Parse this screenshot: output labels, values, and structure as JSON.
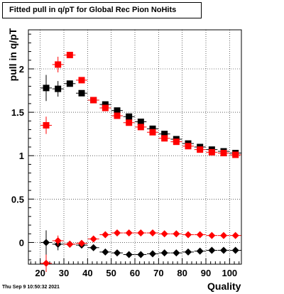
{
  "chart_data": {
    "type": "scatter",
    "title": "Fitted pull in q/pT for Global Rec Pion NoHits",
    "xlabel": "Quality",
    "ylabel": "pull in q/pT",
    "xlim": [
      15,
      105
    ],
    "ylim": [
      -0.25,
      2.45
    ],
    "xticks": [
      20,
      30,
      40,
      50,
      60,
      70,
      80,
      90,
      100
    ],
    "yticks": [
      0,
      0.5,
      1,
      1.5,
      2
    ],
    "ytick_labels": [
      "0",
      "0.5",
      "1",
      "1.5",
      "2"
    ],
    "grid": true,
    "timestamp": "Thu Sep  9 10:50:32 2021",
    "series": [
      {
        "marker": "square",
        "color": "#000000",
        "x": [
          22.5,
          27.5,
          32.5,
          37.5,
          42.5,
          47.5,
          52.5,
          57.5,
          62.5,
          67.5,
          72.5,
          77.5,
          82.5,
          87.5,
          92.5,
          97.5,
          102.5
        ],
        "y": [
          1.78,
          1.77,
          1.83,
          1.72,
          1.64,
          1.59,
          1.52,
          1.45,
          1.39,
          1.31,
          1.25,
          1.19,
          1.14,
          1.1,
          1.07,
          1.05,
          1.03
        ],
        "yerr": [
          0.15,
          0.09,
          0.03,
          0.02,
          0.02,
          0.02,
          0.02,
          0.02,
          0.02,
          0.02,
          0.02,
          0.02,
          0.02,
          0.02,
          0.02,
          0.02,
          0.02
        ]
      },
      {
        "marker": "square",
        "color": "#ff0000",
        "x": [
          22.5,
          27.5,
          32.5,
          37.5,
          42.5,
          47.5,
          52.5,
          57.5,
          62.5,
          67.5,
          72.5,
          77.5,
          82.5,
          87.5,
          92.5,
          97.5,
          102.5
        ],
        "y": [
          1.35,
          2.05,
          2.16,
          1.87,
          1.64,
          1.55,
          1.46,
          1.38,
          1.33,
          1.27,
          1.2,
          1.16,
          1.11,
          1.07,
          1.04,
          1.03,
          1.01
        ],
        "yerr": [
          0.1,
          0.09,
          0.04,
          0.02,
          0.02,
          0.02,
          0.02,
          0.02,
          0.02,
          0.02,
          0.02,
          0.02,
          0.02,
          0.02,
          0.02,
          0.02,
          0.02
        ]
      },
      {
        "marker": "diamond",
        "color": "#000000",
        "x": [
          22.5,
          27.5,
          32.5,
          37.5,
          42.5,
          47.5,
          52.5,
          57.5,
          62.5,
          67.5,
          72.5,
          77.5,
          82.5,
          87.5,
          92.5,
          97.5,
          102.5
        ],
        "y": [
          0.0,
          -0.02,
          -0.02,
          -0.03,
          -0.06,
          -0.11,
          -0.12,
          -0.14,
          -0.14,
          -0.13,
          -0.12,
          -0.12,
          -0.11,
          -0.1,
          -0.09,
          -0.09,
          -0.09
        ],
        "yerr": [
          0.14,
          0.07,
          0.02,
          0.02,
          0.02,
          0.02,
          0.02,
          0.02,
          0.02,
          0.02,
          0.02,
          0.02,
          0.02,
          0.02,
          0.02,
          0.02,
          0.02
        ]
      },
      {
        "marker": "diamond",
        "color": "#ff0000",
        "x": [
          22.5,
          27.5,
          32.5,
          37.5,
          42.5,
          47.5,
          52.5,
          57.5,
          62.5,
          67.5,
          72.5,
          77.5,
          82.5,
          87.5,
          92.5,
          97.5,
          102.5
        ],
        "y": [
          -0.24,
          0.02,
          -0.02,
          -0.01,
          0.04,
          0.09,
          0.11,
          0.11,
          0.11,
          0.11,
          0.1,
          0.1,
          0.09,
          0.09,
          0.08,
          0.08,
          0.08
        ],
        "yerr": [
          0.1,
          0.06,
          0.02,
          0.02,
          0.02,
          0.02,
          0.02,
          0.02,
          0.02,
          0.02,
          0.02,
          0.02,
          0.02,
          0.02,
          0.02,
          0.02,
          0.02
        ]
      }
    ]
  }
}
